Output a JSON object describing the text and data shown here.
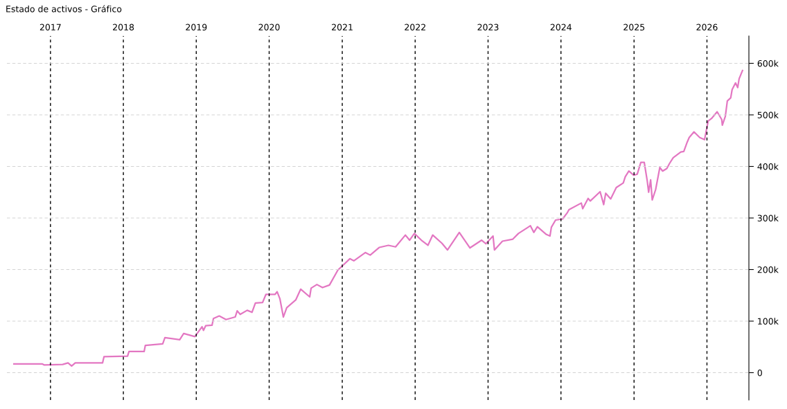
{
  "chart_data": {
    "type": "line",
    "title": "Estado de activos - Gráfico",
    "x": [
      "2016-07-02",
      "2016-11-20",
      "2016-11-30",
      "2017-03-03",
      "2017-03-30",
      "2017-04-17",
      "2017-05-05",
      "2017-09-19",
      "2017-09-26",
      "2018-01-22",
      "2018-01-29",
      "2018-04-15",
      "2018-04-21",
      "2018-07-17",
      "2018-07-28",
      "2018-10-10",
      "2018-10-30",
      "2018-12-25",
      "2019-01-30",
      "2019-02-06",
      "2019-02-17",
      "2019-03-21",
      "2019-03-28",
      "2019-04-26",
      "2019-05-30",
      "2019-07-15",
      "2019-07-25",
      "2019-08-09",
      "2019-09-13",
      "2019-10-07",
      "2019-10-24",
      "2019-11-29",
      "2019-12-16",
      "2020-01-31",
      "2020-02-10",
      "2020-02-24",
      "2020-03-12",
      "2020-03-29",
      "2020-05-13",
      "2020-06-07",
      "2020-07-22",
      "2020-07-29",
      "2020-08-27",
      "2020-09-24",
      "2020-10-29",
      "2020-12-10",
      "2021-01-04",
      "2021-02-08",
      "2021-02-28",
      "2021-04-27",
      "2021-05-21",
      "2021-07-06",
      "2021-08-20",
      "2021-09-25",
      "2021-11-13",
      "2021-12-04",
      "2021-12-28",
      "2022-02-01",
      "2022-03-06",
      "2022-03-30",
      "2022-05-15",
      "2022-06-12",
      "2022-08-10",
      "2022-10-02",
      "2022-11-30",
      "2022-12-21",
      "2023-01-26",
      "2023-02-02",
      "2023-03-14",
      "2023-05-05",
      "2023-06-02",
      "2023-08-01",
      "2023-08-18",
      "2023-09-05",
      "2023-10-20",
      "2023-11-07",
      "2023-11-14",
      "2023-12-05",
      "2024-01-09",
      "2024-02-03",
      "2024-02-10",
      "2024-04-12",
      "2024-04-19",
      "2024-05-16",
      "2024-05-27",
      "2024-07-15",
      "2024-08-02",
      "2024-08-12",
      "2024-09-06",
      "2024-10-04",
      "2024-11-08",
      "2024-11-18",
      "2024-12-06",
      "2024-12-30",
      "2025-01-17",
      "2025-02-04",
      "2025-02-21",
      "2025-03-08",
      "2025-03-15",
      "2025-03-25",
      "2025-04-02",
      "2025-04-19",
      "2025-05-10",
      "2025-05-24",
      "2025-06-14",
      "2025-06-28",
      "2025-07-16",
      "2025-08-23",
      "2025-09-07",
      "2025-09-24",
      "2025-10-04",
      "2025-10-28",
      "2025-11-26",
      "2025-12-20",
      "2026-01-07",
      "2026-01-24",
      "2026-02-21",
      "2026-03-16",
      "2026-03-19",
      "2026-04-03",
      "2026-04-13",
      "2026-04-30",
      "2026-05-07",
      "2026-05-24",
      "2026-06-04",
      "2026-06-11",
      "2026-06-28"
    ],
    "series": [
      {
        "color": "#e377c2",
        "values": [
          17000,
          17000,
          15000,
          16000,
          19000,
          13000,
          19000,
          19000,
          31000,
          32000,
          41000,
          41000,
          53000,
          56000,
          68000,
          64000,
          76000,
          70000,
          89000,
          82000,
          91000,
          92000,
          105000,
          110000,
          103000,
          108000,
          120000,
          113000,
          121000,
          117000,
          135000,
          136000,
          152000,
          152000,
          157000,
          143000,
          108000,
          126000,
          141000,
          162000,
          147000,
          164000,
          171000,
          165000,
          170000,
          199000,
          208000,
          221000,
          217000,
          233000,
          228000,
          243000,
          247000,
          244000,
          267000,
          257000,
          270000,
          257000,
          247000,
          267000,
          251000,
          238000,
          272000,
          242000,
          257000,
          250000,
          265000,
          238000,
          255000,
          259000,
          270000,
          285000,
          272000,
          283000,
          268000,
          265000,
          282000,
          296000,
          298000,
          311000,
          316000,
          329000,
          318000,
          338000,
          333000,
          351000,
          326000,
          348000,
          337000,
          359000,
          368000,
          380000,
          391000,
          383000,
          385000,
          408000,
          408000,
          372000,
          350000,
          374000,
          335000,
          355000,
          398000,
          391000,
          396000,
          406000,
          417000,
          428000,
          429000,
          447000,
          456000,
          467000,
          456000,
          452000,
          488000,
          493000,
          506000,
          491000,
          480000,
          497000,
          527000,
          533000,
          549000,
          562000,
          553000,
          570000,
          586000
        ]
      }
    ],
    "xlim": [
      "2016-05-28",
      "2026-07-30"
    ],
    "ylim": [
      -53000,
      653000
    ],
    "yticks": [
      {
        "value": 0,
        "label": "0"
      },
      {
        "value": 100000,
        "label": "100k"
      },
      {
        "value": 200000,
        "label": "200k"
      },
      {
        "value": 300000,
        "label": "300k"
      },
      {
        "value": 400000,
        "label": "400k"
      },
      {
        "value": 500000,
        "label": "500k"
      },
      {
        "value": 600000,
        "label": "600k"
      }
    ],
    "xticks": [
      {
        "value": "2017-01-01",
        "label": "2017"
      },
      {
        "value": "2018-01-01",
        "label": "2018"
      },
      {
        "value": "2019-01-01",
        "label": "2019"
      },
      {
        "value": "2020-01-01",
        "label": "2020"
      },
      {
        "value": "2021-01-01",
        "label": "2021"
      },
      {
        "value": "2022-01-01",
        "label": "2022"
      },
      {
        "value": "2023-01-01",
        "label": "2023"
      },
      {
        "value": "2024-01-01",
        "label": "2024"
      },
      {
        "value": "2025-01-01",
        "label": "2025"
      },
      {
        "value": "2026-01-01",
        "label": "2026"
      }
    ],
    "grid": true,
    "legend": false,
    "marker": "none",
    "line_style": "solid"
  }
}
